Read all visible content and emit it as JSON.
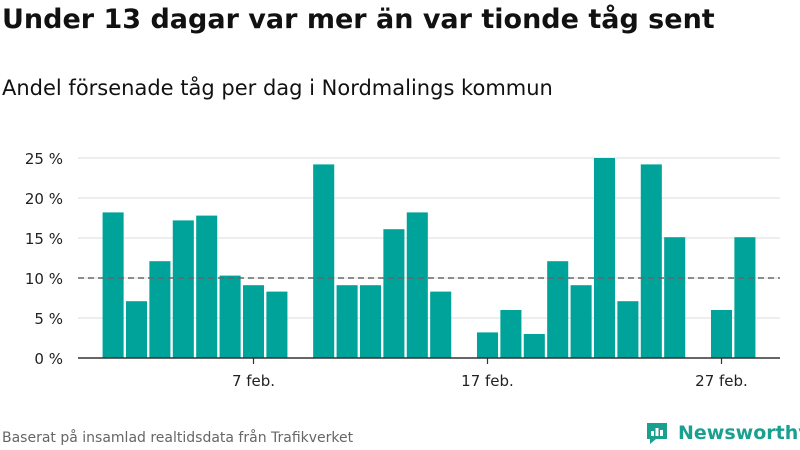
{
  "title": "Under 13 dagar var mer än var tionde tåg sent",
  "subtitle": "Andel försenade tåg per dag i Nordmalings kommun",
  "source": "Baserat på insamlad realtidsdata från Trafikverket",
  "brand": "Newsworthy",
  "colors": {
    "bar": "#00a39a",
    "grid": "#dddddd",
    "axis": "#333333",
    "reference": "#666666",
    "brand": "#1aa08f"
  },
  "chart_data": {
    "type": "bar",
    "x": [
      1,
      2,
      3,
      4,
      5,
      6,
      7,
      8,
      9,
      10,
      11,
      12,
      13,
      14,
      15,
      16,
      17,
      18,
      19,
      20,
      21,
      22,
      23,
      24,
      25,
      26,
      27,
      28
    ],
    "values": [
      18.2,
      7.1,
      12.1,
      17.2,
      17.8,
      10.3,
      9.1,
      8.3,
      null,
      24.2,
      9.1,
      9.1,
      16.1,
      18.2,
      8.3,
      null,
      3.2,
      6.0,
      3.0,
      12.1,
      9.1,
      25.0,
      7.1,
      24.2,
      15.1,
      null,
      6.0,
      15.1
    ],
    "x_ticks": [
      {
        "x": 7,
        "label": "7 feb."
      },
      {
        "x": 17,
        "label": "17 feb."
      },
      {
        "x": 27,
        "label": "27 feb."
      }
    ],
    "y_ticks": [
      {
        "v": 0,
        "label": "0 %"
      },
      {
        "v": 5,
        "label": "5 %"
      },
      {
        "v": 10,
        "label": "10 %"
      },
      {
        "v": 15,
        "label": "15 %"
      },
      {
        "v": 20,
        "label": "20 %"
      },
      {
        "v": 25,
        "label": "25 %"
      }
    ],
    "ylim": [
      0,
      25
    ],
    "xlim": [
      -0.5,
      29.5
    ],
    "reference_line": 10,
    "grid": true
  }
}
